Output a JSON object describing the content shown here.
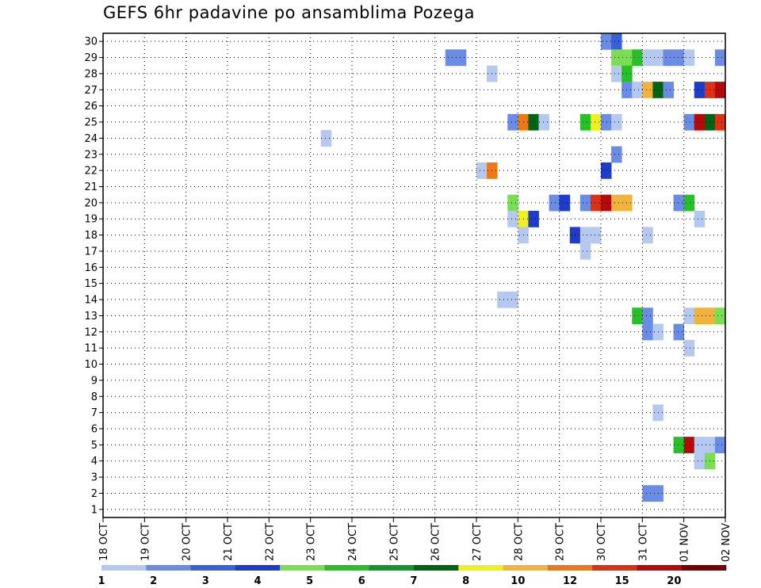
{
  "chart_data": {
    "type": "heatmap",
    "title": "GEFS 6hr padavine po ansamblima Pozega",
    "ylim": [
      0.5,
      30.5
    ],
    "y_ticks": [
      1,
      2,
      3,
      4,
      5,
      6,
      7,
      8,
      9,
      10,
      11,
      12,
      13,
      14,
      15,
      16,
      17,
      18,
      19,
      20,
      21,
      22,
      23,
      24,
      25,
      26,
      27,
      28,
      29,
      30
    ],
    "x_tick_labels": [
      "18 OCT",
      "19 OCT",
      "20 OCT",
      "21 OCT",
      "22 OCT",
      "23 OCT",
      "24 OCT",
      "25 OCT",
      "26 OCT",
      "27 OCT",
      "28 OCT",
      "29 OCT",
      "30 OCT",
      "31 OCT",
      "01 NOV",
      "02 NOV"
    ],
    "x_start": "2024-10-18T00:00",
    "x_step_hours": 6,
    "x_steps": 60,
    "grid": true,
    "legend": {
      "placement": "bottom",
      "thresholds": [
        "1",
        "2",
        "3",
        "4",
        "5",
        "6",
        "7",
        "8",
        "10",
        "12",
        "15",
        "20"
      ],
      "colors": [
        "#b4c8f0",
        "#6a8ce4",
        "#3860dc",
        "#1e3cc8",
        "#78e050",
        "#28c028",
        "#149628",
        "#006414",
        "#f0f01e",
        "#f0b43c",
        "#f07814",
        "#dc3214",
        "#b40a0a",
        "#780000"
      ]
    },
    "cells": [
      [
        30,
        48,
        "#6a8ce4"
      ],
      [
        30,
        49,
        "#3860dc"
      ],
      [
        29,
        33,
        "#6a8ce4"
      ],
      [
        29,
        34,
        "#6a8ce4"
      ],
      [
        29,
        49,
        "#78e050"
      ],
      [
        29,
        50,
        "#78e050"
      ],
      [
        29,
        51,
        "#28c028"
      ],
      [
        29,
        52,
        "#b4c8f0"
      ],
      [
        29,
        53,
        "#b4c8f0"
      ],
      [
        29,
        54,
        "#6a8ce4"
      ],
      [
        29,
        55,
        "#6a8ce4"
      ],
      [
        29,
        56,
        "#b4c8f0"
      ],
      [
        29,
        59,
        "#6a8ce4"
      ],
      [
        28,
        37,
        "#b4c8f0"
      ],
      [
        28,
        49,
        "#b4c8f0"
      ],
      [
        28,
        50,
        "#28c028"
      ],
      [
        27,
        50,
        "#6a8ce4"
      ],
      [
        27,
        51,
        "#b4c8f0"
      ],
      [
        27,
        52,
        "#f0b43c"
      ],
      [
        27,
        53,
        "#006414"
      ],
      [
        27,
        54,
        "#6a8ce4"
      ],
      [
        27,
        57,
        "#1e3cc8"
      ],
      [
        27,
        58,
        "#dc3214"
      ],
      [
        27,
        59,
        "#b40a0a"
      ],
      [
        25,
        39,
        "#6a8ce4"
      ],
      [
        25,
        40,
        "#f07814"
      ],
      [
        25,
        41,
        "#006414"
      ],
      [
        25,
        42,
        "#b4c8f0"
      ],
      [
        25,
        46,
        "#28c028"
      ],
      [
        25,
        47,
        "#f0f01e"
      ],
      [
        25,
        48,
        "#6a8ce4"
      ],
      [
        25,
        49,
        "#b4c8f0"
      ],
      [
        25,
        56,
        "#6a8ce4"
      ],
      [
        25,
        57,
        "#b40a0a"
      ],
      [
        25,
        58,
        "#006414"
      ],
      [
        25,
        59,
        "#dc3214"
      ],
      [
        24,
        21,
        "#b4c8f0"
      ],
      [
        23,
        49,
        "#6a8ce4"
      ],
      [
        22,
        36,
        "#b4c8f0"
      ],
      [
        22,
        37,
        "#f07814"
      ],
      [
        22,
        48,
        "#1e3cc8"
      ],
      [
        20,
        39,
        "#78e050"
      ],
      [
        20,
        43,
        "#6a8ce4"
      ],
      [
        20,
        44,
        "#1e3cc8"
      ],
      [
        20,
        46,
        "#6a8ce4"
      ],
      [
        20,
        47,
        "#dc3214"
      ],
      [
        20,
        48,
        "#b40a0a"
      ],
      [
        20,
        49,
        "#f0b43c"
      ],
      [
        20,
        50,
        "#f0b43c"
      ],
      [
        20,
        55,
        "#6a8ce4"
      ],
      [
        20,
        56,
        "#28c028"
      ],
      [
        19,
        39,
        "#b4c8f0"
      ],
      [
        19,
        40,
        "#f0f01e"
      ],
      [
        19,
        41,
        "#1e3cc8"
      ],
      [
        19,
        57,
        "#b4c8f0"
      ],
      [
        18,
        40,
        "#b4c8f0"
      ],
      [
        18,
        45,
        "#1e3cc8"
      ],
      [
        18,
        46,
        "#b4c8f0"
      ],
      [
        18,
        47,
        "#b4c8f0"
      ],
      [
        18,
        52,
        "#b4c8f0"
      ],
      [
        17,
        46,
        "#b4c8f0"
      ],
      [
        14,
        38,
        "#b4c8f0"
      ],
      [
        14,
        39,
        "#b4c8f0"
      ],
      [
        13,
        51,
        "#28c028"
      ],
      [
        13,
        52,
        "#6a8ce4"
      ],
      [
        13,
        56,
        "#b4c8f0"
      ],
      [
        13,
        57,
        "#f0b43c"
      ],
      [
        13,
        58,
        "#f0b43c"
      ],
      [
        13,
        59,
        "#78e050"
      ],
      [
        12,
        52,
        "#6a8ce4"
      ],
      [
        12,
        53,
        "#b4c8f0"
      ],
      [
        12,
        55,
        "#6a8ce4"
      ],
      [
        11,
        56,
        "#b4c8f0"
      ],
      [
        7,
        53,
        "#b4c8f0"
      ],
      [
        5,
        55,
        "#28c028"
      ],
      [
        5,
        56,
        "#b40a0a"
      ],
      [
        5,
        57,
        "#b4c8f0"
      ],
      [
        5,
        58,
        "#b4c8f0"
      ],
      [
        5,
        59,
        "#6a8ce4"
      ],
      [
        4,
        57,
        "#b4c8f0"
      ],
      [
        4,
        58,
        "#78e050"
      ],
      [
        2,
        52,
        "#6a8ce4"
      ],
      [
        2,
        53,
        "#6a8ce4"
      ]
    ]
  }
}
